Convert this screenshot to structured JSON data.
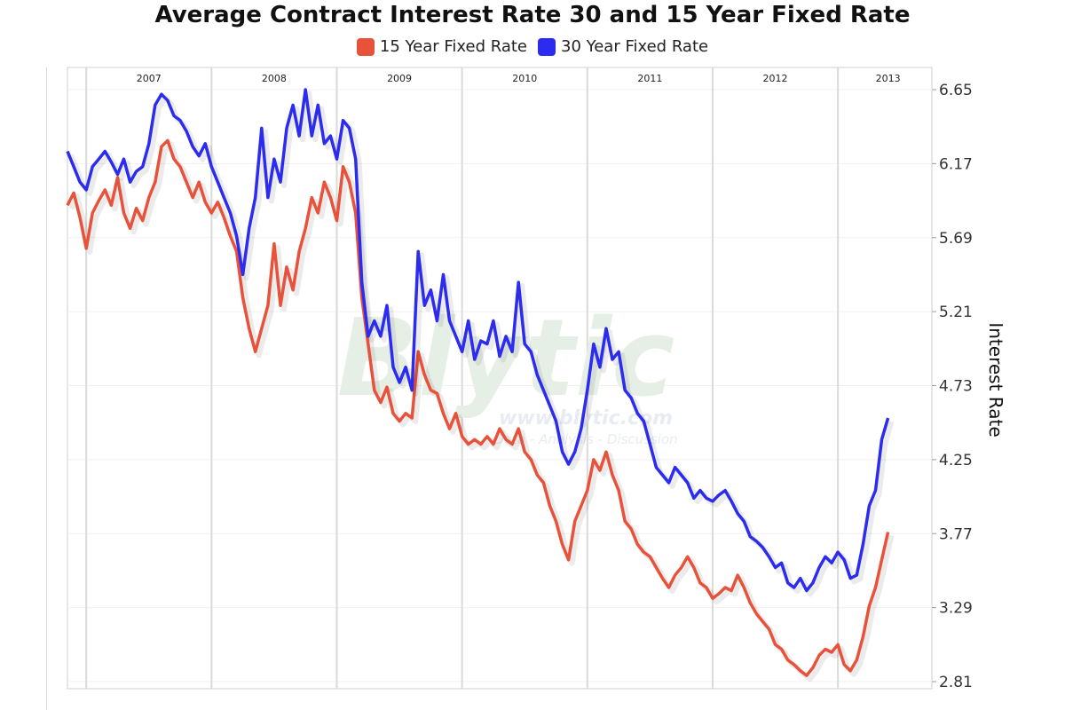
{
  "chart_data": {
    "type": "line",
    "title": "Average Contract Interest Rate 30 and 15 Year Fixed Rate",
    "ylabel": "Interest Rate",
    "xlabel": "",
    "x_year_labels": [
      "2007",
      "2008",
      "2009",
      "2010",
      "2011",
      "2012",
      "2013"
    ],
    "y_ticks": [
      "6.65",
      "6.17",
      "5.69",
      "5.21",
      "4.73",
      "4.25",
      "3.77",
      "3.29",
      "2.81"
    ],
    "ylim": [
      2.81,
      6.65
    ],
    "xlim": [
      2006.45,
      2013.35
    ],
    "grid": true,
    "legend_position": "top-center",
    "watermark": "Blytic www.blytic.com Data - Analysis - Discussion",
    "series": [
      {
        "name": "15 Year Fixed Rate",
        "color": "#e8523a",
        "points": [
          [
            2006.45,
            5.9
          ],
          [
            2006.5,
            5.98
          ],
          [
            2006.55,
            5.82
          ],
          [
            2006.6,
            5.62
          ],
          [
            2006.65,
            5.85
          ],
          [
            2006.7,
            5.93
          ],
          [
            2006.75,
            6.0
          ],
          [
            2006.8,
            5.9
          ],
          [
            2006.85,
            6.08
          ],
          [
            2006.9,
            5.85
          ],
          [
            2006.95,
            5.75
          ],
          [
            2007.0,
            5.88
          ],
          [
            2007.05,
            5.8
          ],
          [
            2007.1,
            5.95
          ],
          [
            2007.15,
            6.05
          ],
          [
            2007.2,
            6.28
          ],
          [
            2007.25,
            6.32
          ],
          [
            2007.3,
            6.2
          ],
          [
            2007.35,
            6.15
          ],
          [
            2007.4,
            6.05
          ],
          [
            2007.45,
            5.95
          ],
          [
            2007.5,
            6.05
          ],
          [
            2007.55,
            5.92
          ],
          [
            2007.6,
            5.85
          ],
          [
            2007.65,
            5.92
          ],
          [
            2007.7,
            5.82
          ],
          [
            2007.75,
            5.7
          ],
          [
            2007.8,
            5.6
          ],
          [
            2007.85,
            5.3
          ],
          [
            2007.9,
            5.1
          ],
          [
            2007.95,
            4.95
          ],
          [
            2008.0,
            5.1
          ],
          [
            2008.05,
            5.25
          ],
          [
            2008.1,
            5.65
          ],
          [
            2008.15,
            5.25
          ],
          [
            2008.2,
            5.5
          ],
          [
            2008.25,
            5.35
          ],
          [
            2008.3,
            5.6
          ],
          [
            2008.35,
            5.75
          ],
          [
            2008.4,
            5.95
          ],
          [
            2008.45,
            5.85
          ],
          [
            2008.5,
            6.05
          ],
          [
            2008.55,
            5.95
          ],
          [
            2008.6,
            5.8
          ],
          [
            2008.65,
            6.15
          ],
          [
            2008.7,
            6.05
          ],
          [
            2008.75,
            5.85
          ],
          [
            2008.8,
            5.3
          ],
          [
            2008.85,
            5.0
          ],
          [
            2008.9,
            4.7
          ],
          [
            2008.95,
            4.62
          ],
          [
            2009.0,
            4.72
          ],
          [
            2009.05,
            4.55
          ],
          [
            2009.1,
            4.5
          ],
          [
            2009.15,
            4.55
          ],
          [
            2009.2,
            4.52
          ],
          [
            2009.25,
            4.95
          ],
          [
            2009.3,
            4.8
          ],
          [
            2009.35,
            4.7
          ],
          [
            2009.4,
            4.68
          ],
          [
            2009.45,
            4.55
          ],
          [
            2009.5,
            4.45
          ],
          [
            2009.55,
            4.55
          ],
          [
            2009.6,
            4.4
          ],
          [
            2009.65,
            4.35
          ],
          [
            2009.7,
            4.38
          ],
          [
            2009.75,
            4.35
          ],
          [
            2009.8,
            4.4
          ],
          [
            2009.85,
            4.35
          ],
          [
            2009.9,
            4.45
          ],
          [
            2009.95,
            4.38
          ],
          [
            2010.0,
            4.35
          ],
          [
            2010.05,
            4.45
          ],
          [
            2010.1,
            4.3
          ],
          [
            2010.15,
            4.25
          ],
          [
            2010.2,
            4.15
          ],
          [
            2010.25,
            4.1
          ],
          [
            2010.3,
            3.95
          ],
          [
            2010.35,
            3.85
          ],
          [
            2010.4,
            3.7
          ],
          [
            2010.45,
            3.6
          ],
          [
            2010.5,
            3.85
          ],
          [
            2010.55,
            3.95
          ],
          [
            2010.6,
            4.05
          ],
          [
            2010.65,
            4.25
          ],
          [
            2010.7,
            4.18
          ],
          [
            2010.75,
            4.3
          ],
          [
            2010.8,
            4.15
          ],
          [
            2010.85,
            4.05
          ],
          [
            2010.9,
            3.85
          ],
          [
            2010.95,
            3.8
          ],
          [
            2011.0,
            3.7
          ],
          [
            2011.05,
            3.65
          ],
          [
            2011.1,
            3.62
          ],
          [
            2011.15,
            3.55
          ],
          [
            2011.2,
            3.48
          ],
          [
            2011.25,
            3.42
          ],
          [
            2011.3,
            3.5
          ],
          [
            2011.35,
            3.55
          ],
          [
            2011.4,
            3.62
          ],
          [
            2011.45,
            3.55
          ],
          [
            2011.5,
            3.45
          ],
          [
            2011.55,
            3.42
          ],
          [
            2011.6,
            3.35
          ],
          [
            2011.65,
            3.38
          ],
          [
            2011.7,
            3.42
          ],
          [
            2011.75,
            3.4
          ],
          [
            2011.8,
            3.5
          ],
          [
            2011.85,
            3.42
          ],
          [
            2011.9,
            3.32
          ],
          [
            2011.95,
            3.25
          ],
          [
            2012.0,
            3.2
          ],
          [
            2012.05,
            3.15
          ],
          [
            2012.1,
            3.05
          ],
          [
            2012.15,
            3.02
          ],
          [
            2012.2,
            2.95
          ],
          [
            2012.25,
            2.92
          ],
          [
            2012.3,
            2.88
          ],
          [
            2012.35,
            2.85
          ],
          [
            2012.4,
            2.9
          ],
          [
            2012.45,
            2.98
          ],
          [
            2012.5,
            3.02
          ],
          [
            2012.55,
            3.0
          ],
          [
            2012.6,
            3.05
          ],
          [
            2012.65,
            2.92
          ],
          [
            2012.7,
            2.88
          ],
          [
            2012.75,
            2.95
          ],
          [
            2012.8,
            3.1
          ],
          [
            2012.85,
            3.3
          ],
          [
            2012.9,
            3.42
          ],
          [
            2012.95,
            3.6
          ],
          [
            2013.0,
            3.78
          ]
        ]
      },
      {
        "name": "30 Year Fixed Rate",
        "color": "#2c2cf0",
        "points": [
          [
            2006.45,
            6.25
          ],
          [
            2006.5,
            6.15
          ],
          [
            2006.55,
            6.05
          ],
          [
            2006.6,
            6.0
          ],
          [
            2006.65,
            6.15
          ],
          [
            2006.7,
            6.2
          ],
          [
            2006.75,
            6.25
          ],
          [
            2006.8,
            6.18
          ],
          [
            2006.85,
            6.1
          ],
          [
            2006.9,
            6.2
          ],
          [
            2006.95,
            6.05
          ],
          [
            2007.0,
            6.12
          ],
          [
            2007.05,
            6.15
          ],
          [
            2007.1,
            6.3
          ],
          [
            2007.15,
            6.55
          ],
          [
            2007.2,
            6.62
          ],
          [
            2007.25,
            6.58
          ],
          [
            2007.3,
            6.48
          ],
          [
            2007.35,
            6.45
          ],
          [
            2007.4,
            6.38
          ],
          [
            2007.45,
            6.28
          ],
          [
            2007.5,
            6.22
          ],
          [
            2007.55,
            6.3
          ],
          [
            2007.6,
            6.15
          ],
          [
            2007.65,
            6.05
          ],
          [
            2007.7,
            5.95
          ],
          [
            2007.75,
            5.85
          ],
          [
            2007.8,
            5.7
          ],
          [
            2007.85,
            5.45
          ],
          [
            2007.9,
            5.75
          ],
          [
            2007.95,
            5.95
          ],
          [
            2008.0,
            6.4
          ],
          [
            2008.05,
            5.95
          ],
          [
            2008.1,
            6.2
          ],
          [
            2008.15,
            6.05
          ],
          [
            2008.2,
            6.4
          ],
          [
            2008.25,
            6.55
          ],
          [
            2008.3,
            6.35
          ],
          [
            2008.35,
            6.65
          ],
          [
            2008.4,
            6.35
          ],
          [
            2008.45,
            6.55
          ],
          [
            2008.5,
            6.3
          ],
          [
            2008.55,
            6.35
          ],
          [
            2008.6,
            6.2
          ],
          [
            2008.65,
            6.45
          ],
          [
            2008.7,
            6.4
          ],
          [
            2008.75,
            6.2
          ],
          [
            2008.8,
            5.4
          ],
          [
            2008.85,
            5.05
          ],
          [
            2008.9,
            5.15
          ],
          [
            2008.95,
            5.05
          ],
          [
            2009.0,
            5.25
          ],
          [
            2009.05,
            4.85
          ],
          [
            2009.1,
            4.75
          ],
          [
            2009.15,
            4.85
          ],
          [
            2009.2,
            4.7
          ],
          [
            2009.25,
            5.6
          ],
          [
            2009.3,
            5.25
          ],
          [
            2009.35,
            5.35
          ],
          [
            2009.4,
            5.15
          ],
          [
            2009.45,
            5.45
          ],
          [
            2009.5,
            5.15
          ],
          [
            2009.55,
            5.05
          ],
          [
            2009.6,
            4.95
          ],
          [
            2009.65,
            5.15
          ],
          [
            2009.7,
            4.9
          ],
          [
            2009.75,
            5.02
          ],
          [
            2009.8,
            5.0
          ],
          [
            2009.85,
            5.15
          ],
          [
            2009.9,
            4.92
          ],
          [
            2009.95,
            5.05
          ],
          [
            2010.0,
            4.95
          ],
          [
            2010.05,
            5.4
          ],
          [
            2010.1,
            5.0
          ],
          [
            2010.15,
            4.95
          ],
          [
            2010.2,
            4.8
          ],
          [
            2010.25,
            4.7
          ],
          [
            2010.3,
            4.6
          ],
          [
            2010.35,
            4.5
          ],
          [
            2010.4,
            4.3
          ],
          [
            2010.45,
            4.22
          ],
          [
            2010.5,
            4.3
          ],
          [
            2010.55,
            4.45
          ],
          [
            2010.6,
            4.7
          ],
          [
            2010.65,
            5.0
          ],
          [
            2010.7,
            4.85
          ],
          [
            2010.75,
            5.1
          ],
          [
            2010.8,
            4.9
          ],
          [
            2010.85,
            4.95
          ],
          [
            2010.9,
            4.7
          ],
          [
            2010.95,
            4.65
          ],
          [
            2011.0,
            4.55
          ],
          [
            2011.05,
            4.5
          ],
          [
            2011.1,
            4.35
          ],
          [
            2011.15,
            4.2
          ],
          [
            2011.2,
            4.15
          ],
          [
            2011.25,
            4.1
          ],
          [
            2011.3,
            4.2
          ],
          [
            2011.35,
            4.15
          ],
          [
            2011.4,
            4.1
          ],
          [
            2011.45,
            4.0
          ],
          [
            2011.5,
            4.05
          ],
          [
            2011.55,
            4.0
          ],
          [
            2011.6,
            3.98
          ],
          [
            2011.65,
            4.02
          ],
          [
            2011.7,
            4.05
          ],
          [
            2011.75,
            3.98
          ],
          [
            2011.8,
            3.9
          ],
          [
            2011.85,
            3.85
          ],
          [
            2011.9,
            3.75
          ],
          [
            2011.95,
            3.72
          ],
          [
            2012.0,
            3.68
          ],
          [
            2012.05,
            3.62
          ],
          [
            2012.1,
            3.55
          ],
          [
            2012.15,
            3.58
          ],
          [
            2012.2,
            3.45
          ],
          [
            2012.25,
            3.42
          ],
          [
            2012.3,
            3.48
          ],
          [
            2012.35,
            3.4
          ],
          [
            2012.4,
            3.45
          ],
          [
            2012.45,
            3.55
          ],
          [
            2012.5,
            3.62
          ],
          [
            2012.55,
            3.58
          ],
          [
            2012.6,
            3.65
          ],
          [
            2012.65,
            3.6
          ],
          [
            2012.7,
            3.48
          ],
          [
            2012.75,
            3.5
          ],
          [
            2012.8,
            3.7
          ],
          [
            2012.85,
            3.95
          ],
          [
            2012.9,
            4.05
          ],
          [
            2012.95,
            4.38
          ],
          [
            2013.0,
            4.52
          ]
        ]
      }
    ]
  }
}
